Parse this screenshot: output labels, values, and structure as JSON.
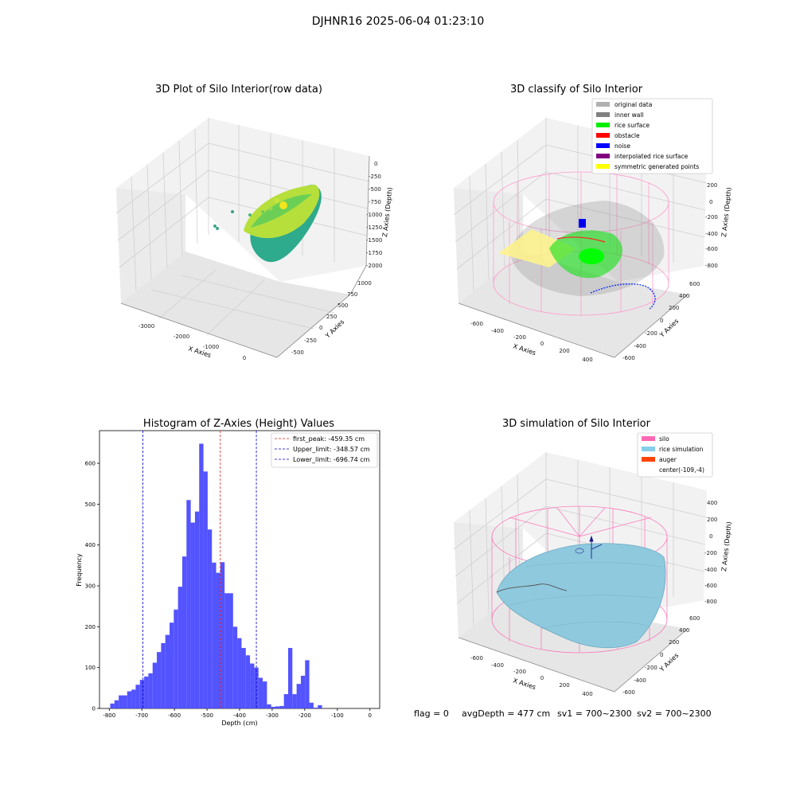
{
  "figure": {
    "suptitle": "DJHNR16 2025-06-04 01:23:10",
    "status_line": {
      "flag": "flag = 0",
      "avg_depth": "avgDepth = 477 cm",
      "sv1": "sv1 = 700~2300",
      "sv2": "sv2 = 700~2300"
    }
  },
  "colors": {
    "hist_bar": "#4a4aff",
    "peak_line": "#e02020",
    "limit_line": "#0000cc",
    "rice": "#87ceeb",
    "silo": "#ff69b4",
    "auger": "#ff4500"
  },
  "panel_raw": {
    "title": "3D Plot of Silo Interior(row data)",
    "xlabel": "X Axies",
    "ylabel": "Y Axies",
    "zlabel": "Z Axies (Depth)",
    "xticks": [
      "-3000",
      "-2000",
      "-1000",
      "0"
    ],
    "yticks": [
      "-500",
      "-250",
      "0",
      "250",
      "500",
      "750",
      "1000"
    ],
    "zticks": [
      "0",
      "-250",
      "-500",
      "-750",
      "-1000",
      "-1250",
      "-1500",
      "-1750",
      "-2000"
    ]
  },
  "panel_classify": {
    "title": "3D classify of Silo Interior",
    "xlabel": "X Axies",
    "ylabel": "Y Axies",
    "zlabel": "Z Axies (Depth)",
    "xticks": [
      "-600",
      "-400",
      "-200",
      "0",
      "200",
      "400"
    ],
    "yticks": [
      "-600",
      "-400",
      "-200",
      "0",
      "200",
      "400",
      "600"
    ],
    "zticks": [
      "200",
      "0",
      "-200",
      "-400",
      "-600",
      "-800"
    ],
    "legend": [
      {
        "label": "original data",
        "color": "#b0b0b0"
      },
      {
        "label": "inner wall",
        "color": "#808080"
      },
      {
        "label": "rice surface",
        "color": "#00ee00"
      },
      {
        "label": "obstacle",
        "color": "#ff0000"
      },
      {
        "label": "noise",
        "color": "#0000ff"
      },
      {
        "label": "interpolated rice surface",
        "color": "#800080"
      },
      {
        "label": "symmetric generated points",
        "color": "#ffff00"
      }
    ]
  },
  "panel_simulation": {
    "title": "3D simulation of Silo Interior",
    "xlabel": "X Axies",
    "ylabel": "Y Axies",
    "zlabel": "Z Axies (Depth)",
    "xticks": [
      "-600",
      "-400",
      "-200",
      "0",
      "200",
      "400"
    ],
    "yticks": [
      "-600",
      "-400",
      "-200",
      "0",
      "200",
      "400",
      "600"
    ],
    "zticks": [
      "400",
      "200",
      "0",
      "-200",
      "-400",
      "-600",
      "-800"
    ],
    "legend": [
      {
        "label": "silo",
        "color": "#ff69b4"
      },
      {
        "label": "rice simulation",
        "color": "#87ceeb"
      },
      {
        "label": "auger",
        "color": "#ff4500"
      },
      {
        "label": "center(-109,-4)",
        "color": ""
      }
    ]
  },
  "chart_data": {
    "type": "bar",
    "title": "Histogram of Z-Axies (Height) Values",
    "xlabel": "Depth (cm)",
    "ylabel": "Frequency",
    "xlim": [
      -830,
      30
    ],
    "ylim": [
      0,
      680
    ],
    "xticks": [
      -800,
      -700,
      -600,
      -500,
      -400,
      -300,
      -200,
      -100,
      0
    ],
    "yticks": [
      0,
      100,
      200,
      300,
      400,
      500,
      600
    ],
    "bin_start": -797,
    "bin_width": 13,
    "values": [
      12,
      20,
      32,
      32,
      42,
      46,
      58,
      70,
      78,
      86,
      112,
      138,
      160,
      180,
      210,
      242,
      298,
      372,
      510,
      455,
      482,
      648,
      580,
      438,
      357,
      332,
      358,
      282,
      282,
      200,
      172,
      148,
      130,
      110,
      100,
      75,
      66,
      10,
      4,
      5,
      6,
      35,
      148,
      35,
      60,
      80,
      118,
      14,
      2,
      8
    ],
    "vlines": [
      {
        "label": "first_peak: -459.35 cm",
        "x": -459.35,
        "style": "red"
      },
      {
        "label": "Upper_limit: -348.57 cm",
        "x": -348.57,
        "style": "blue"
      },
      {
        "label": "Lower_limit: -696.74 cm",
        "x": -696.74,
        "style": "blue"
      }
    ],
    "legend_position": "upper-right"
  }
}
